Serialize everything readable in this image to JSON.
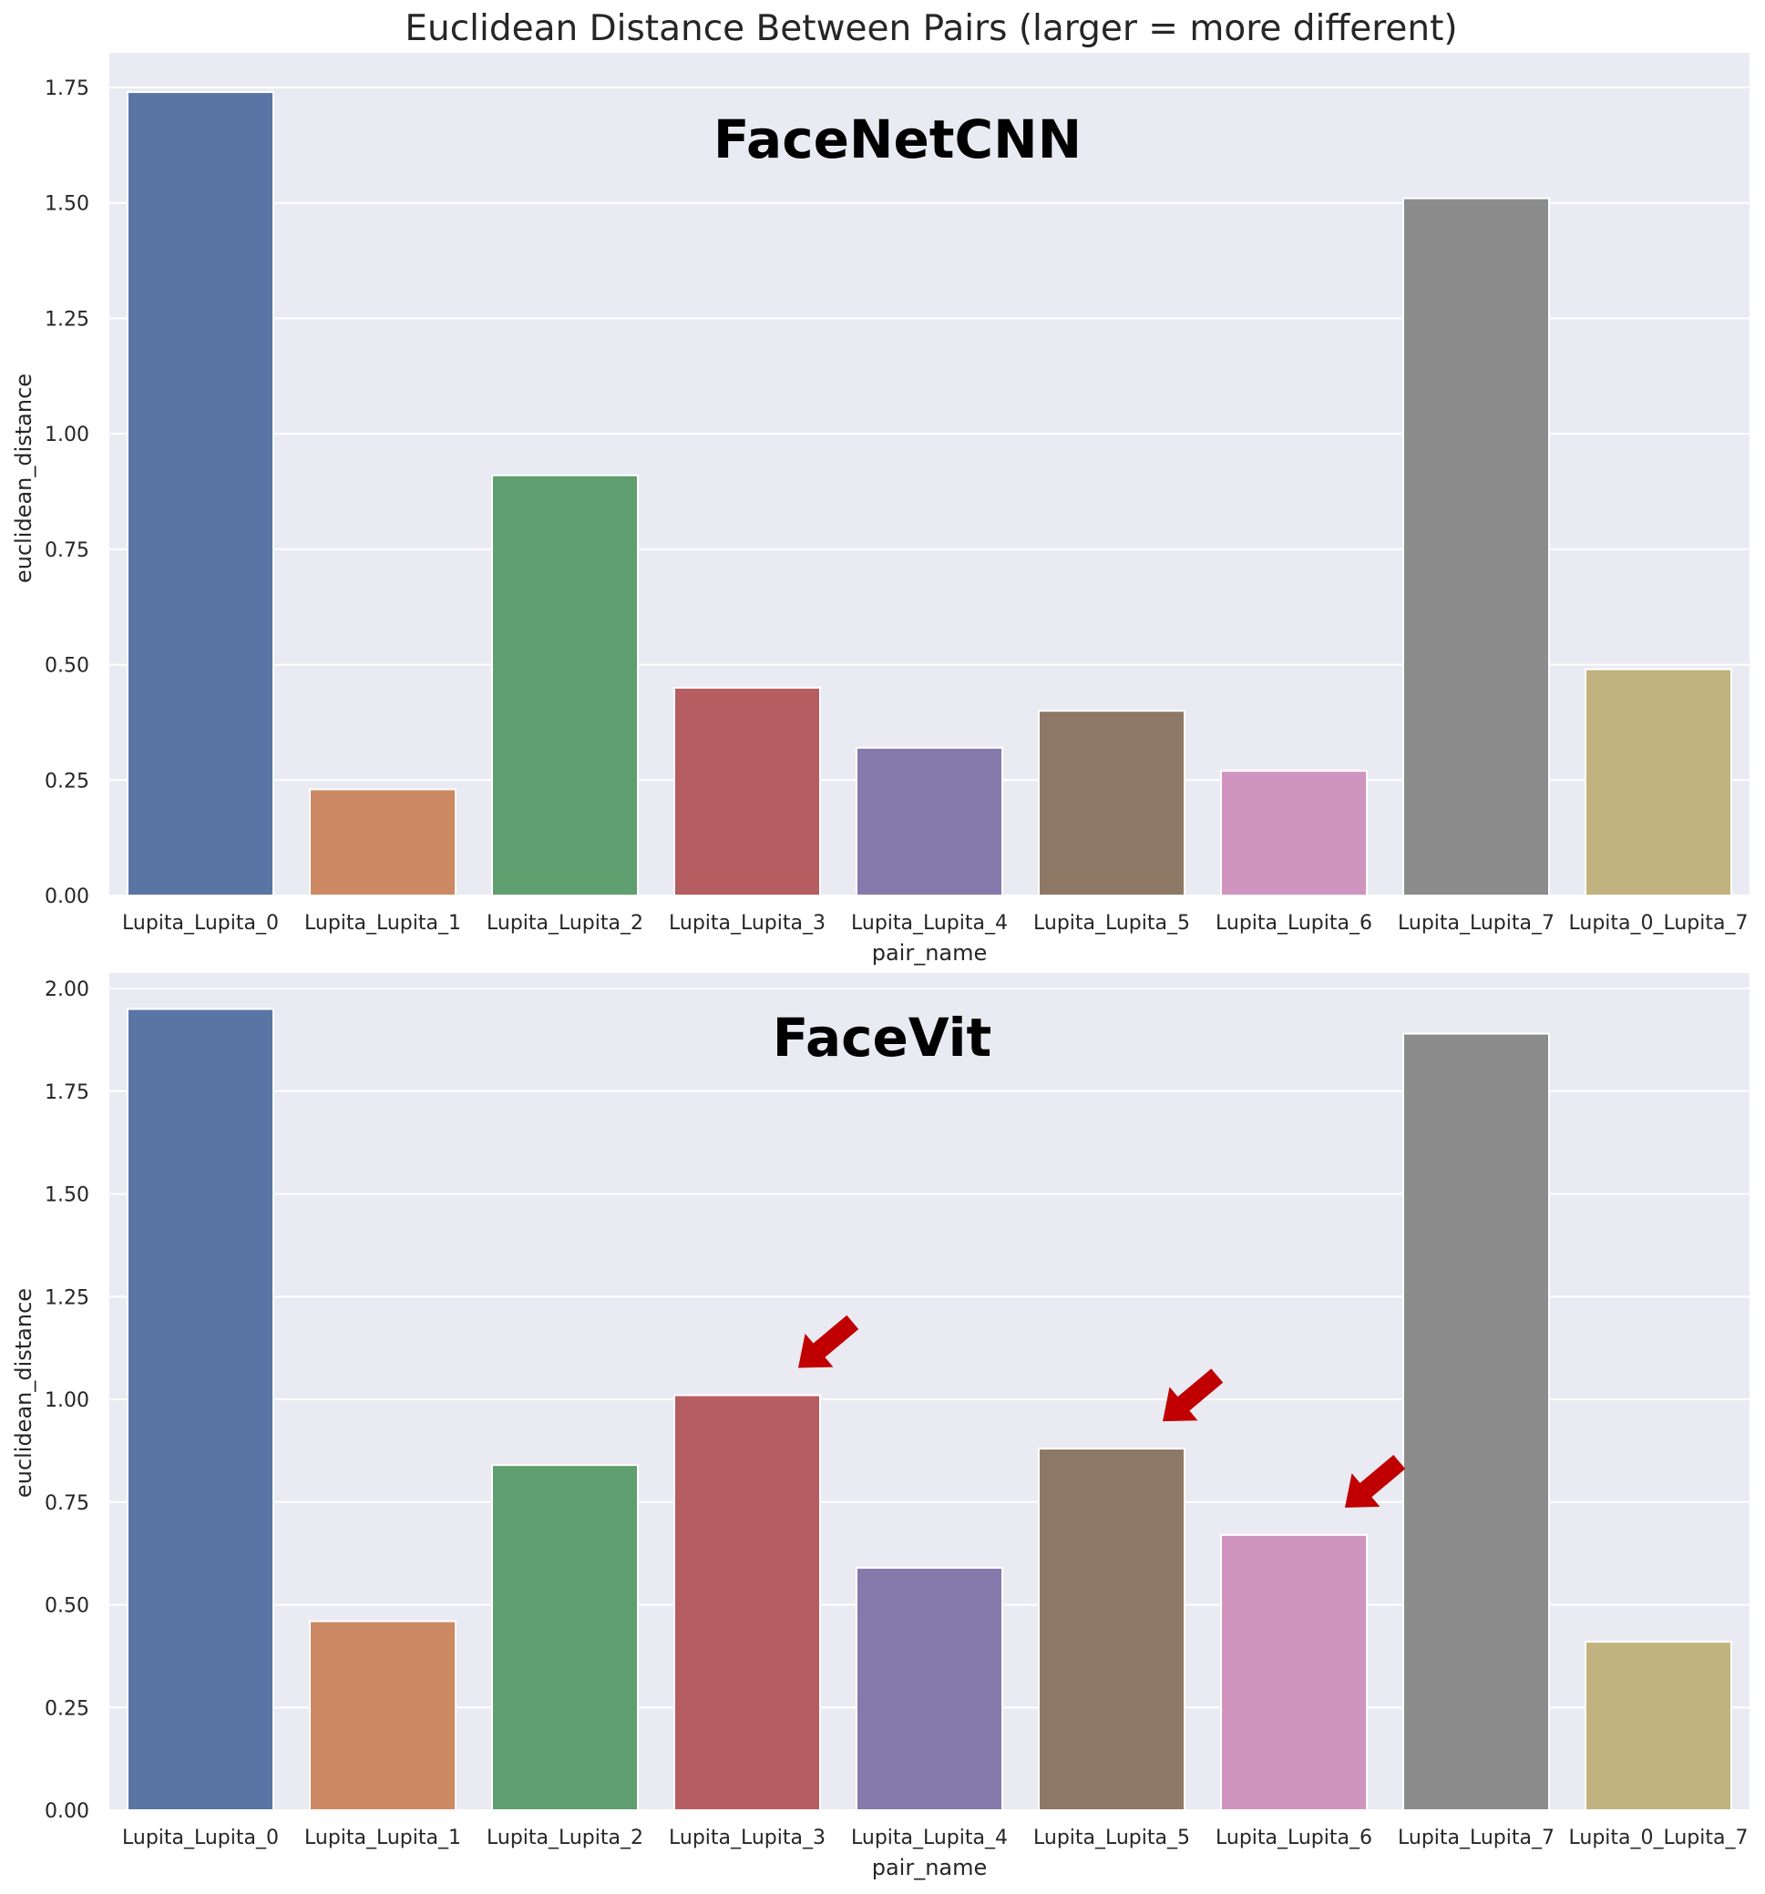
{
  "suptitle": "Euclidean Distance Between Pairs (larger = more different)",
  "chart_data": [
    {
      "type": "bar",
      "panel_label": "FaceNetCNN",
      "categories": [
        "Lupita_Lupita_0",
        "Lupita_Lupita_1",
        "Lupita_Lupita_2",
        "Lupita_Lupita_3",
        "Lupita_Lupita_4",
        "Lupita_Lupita_5",
        "Lupita_Lupita_6",
        "Lupita_Lupita_7",
        "Lupita_0_Lupita_7"
      ],
      "values": [
        1.74,
        0.23,
        0.91,
        0.45,
        0.32,
        0.4,
        0.27,
        1.51,
        0.49
      ],
      "colors": [
        "#5975a4",
        "#cc8963",
        "#5f9e6e",
        "#b55d60",
        "#857aab",
        "#8d7866",
        "#d095bf",
        "#8c8c8c",
        "#c1b37f"
      ],
      "xlabel": "pair_name",
      "ylabel": "euclidean_distance",
      "ylim": [
        0,
        1.75
      ],
      "yticks": [
        "0.00",
        "0.25",
        "0.50",
        "0.75",
        "1.00",
        "1.25",
        "1.50",
        "1.75"
      ],
      "grid": true,
      "annotations": []
    },
    {
      "type": "bar",
      "panel_label": "FaceVit",
      "categories": [
        "Lupita_Lupita_0",
        "Lupita_Lupita_1",
        "Lupita_Lupita_2",
        "Lupita_Lupita_3",
        "Lupita_Lupita_4",
        "Lupita_Lupita_5",
        "Lupita_Lupita_6",
        "Lupita_Lupita_7",
        "Lupita_0_Lupita_7"
      ],
      "values": [
        1.95,
        0.46,
        0.84,
        1.01,
        0.59,
        0.88,
        0.67,
        1.89,
        0.41
      ],
      "colors": [
        "#5975a4",
        "#cc8963",
        "#5f9e6e",
        "#b55d60",
        "#857aab",
        "#8d7866",
        "#d095bf",
        "#8c8c8c",
        "#c1b37f"
      ],
      "xlabel": "pair_name",
      "ylabel": "euclidean_distance",
      "ylim": [
        0,
        2.0
      ],
      "yticks": [
        "0.00",
        "0.25",
        "0.50",
        "0.75",
        "1.00",
        "1.25",
        "1.50",
        "1.75",
        "2.00"
      ],
      "grid": true,
      "annotations": [
        {
          "type": "arrow",
          "color": "#c00000",
          "points_to": "Lupita_Lupita_3"
        },
        {
          "type": "arrow",
          "color": "#c00000",
          "points_to": "Lupita_Lupita_5"
        },
        {
          "type": "arrow",
          "color": "#c00000",
          "points_to": "Lupita_Lupita_6"
        }
      ]
    }
  ]
}
